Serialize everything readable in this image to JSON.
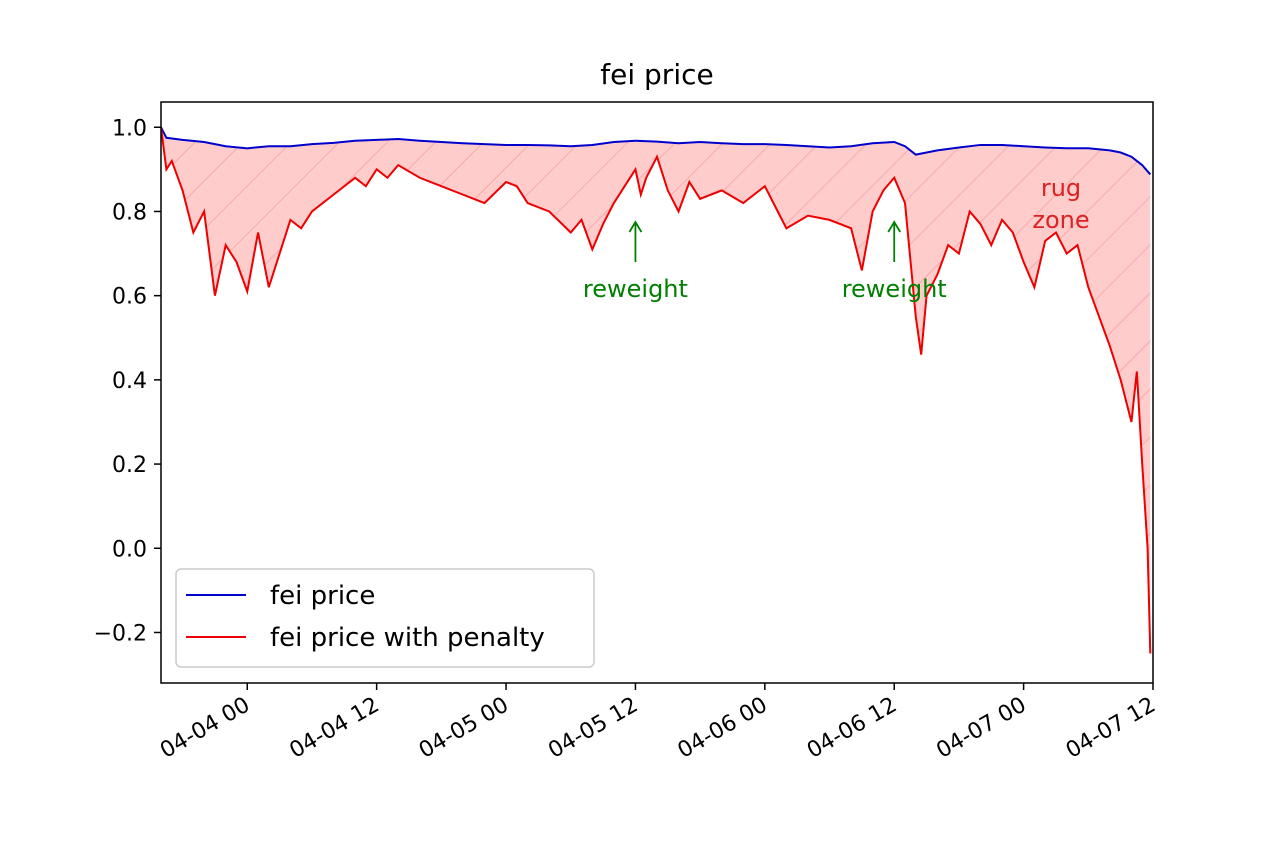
{
  "chart_data": {
    "type": "line",
    "title": "fei price",
    "xlabel": "",
    "ylabel": "",
    "x_range": [
      "2022-04-03 16:00",
      "2022-04-07 12:00"
    ],
    "ylim": [
      -0.32,
      1.06
    ],
    "grid": false,
    "legend_position": "lower-left",
    "x_ticks": [
      "04-04 00",
      "04-04 12",
      "04-05 00",
      "04-05 12",
      "04-06 00",
      "04-06 12",
      "04-07 00",
      "04-07 12"
    ],
    "y_ticks": [
      "1.0",
      "0.8",
      "0.6",
      "0.4",
      "0.2",
      "0.0",
      "−0.2"
    ],
    "series": [
      {
        "name": "fei price",
        "color": "#0000cc",
        "points": [
          [
            "04-03 16:00",
            1.0
          ],
          [
            "04-03 16:30",
            0.975
          ],
          [
            "04-03 18:00",
            0.97
          ],
          [
            "04-03 20:00",
            0.965
          ],
          [
            "04-03 22:00",
            0.955
          ],
          [
            "04-04 00:00",
            0.95
          ],
          [
            "04-04 02:00",
            0.955
          ],
          [
            "04-04 04:00",
            0.955
          ],
          [
            "04-04 06:00",
            0.96
          ],
          [
            "04-04 08:00",
            0.963
          ],
          [
            "04-04 10:00",
            0.968
          ],
          [
            "04-04 12:00",
            0.97
          ],
          [
            "04-04 14:00",
            0.972
          ],
          [
            "04-04 16:00",
            0.968
          ],
          [
            "04-04 18:00",
            0.965
          ],
          [
            "04-04 20:00",
            0.962
          ],
          [
            "04-04 22:00",
            0.96
          ],
          [
            "04-05 00:00",
            0.958
          ],
          [
            "04-05 02:00",
            0.958
          ],
          [
            "04-05 04:00",
            0.957
          ],
          [
            "04-05 06:00",
            0.955
          ],
          [
            "04-05 08:00",
            0.958
          ],
          [
            "04-05 10:00",
            0.965
          ],
          [
            "04-05 12:00",
            0.968
          ],
          [
            "04-05 14:00",
            0.966
          ],
          [
            "04-05 16:00",
            0.962
          ],
          [
            "04-05 18:00",
            0.965
          ],
          [
            "04-05 20:00",
            0.962
          ],
          [
            "04-05 22:00",
            0.96
          ],
          [
            "04-06 00:00",
            0.96
          ],
          [
            "04-06 02:00",
            0.958
          ],
          [
            "04-06 04:00",
            0.955
          ],
          [
            "04-06 06:00",
            0.952
          ],
          [
            "04-06 08:00",
            0.955
          ],
          [
            "04-06 10:00",
            0.962
          ],
          [
            "04-06 12:00",
            0.965
          ],
          [
            "04-06 13:00",
            0.955
          ],
          [
            "04-06 14:00",
            0.935
          ],
          [
            "04-06 16:00",
            0.945
          ],
          [
            "04-06 18:00",
            0.952
          ],
          [
            "04-06 20:00",
            0.958
          ],
          [
            "04-06 22:00",
            0.958
          ],
          [
            "04-07 00:00",
            0.955
          ],
          [
            "04-07 02:00",
            0.952
          ],
          [
            "04-07 04:00",
            0.95
          ],
          [
            "04-07 06:00",
            0.95
          ],
          [
            "04-07 08:00",
            0.945
          ],
          [
            "04-07 09:00",
            0.94
          ],
          [
            "04-07 10:00",
            0.93
          ],
          [
            "04-07 11:00",
            0.91
          ],
          [
            "04-07 11:45",
            0.888
          ]
        ]
      },
      {
        "name": "fei price with penalty",
        "color": "#ee0000",
        "points": [
          [
            "04-03 16:00",
            1.0
          ],
          [
            "04-03 16:30",
            0.9
          ],
          [
            "04-03 17:00",
            0.92
          ],
          [
            "04-03 18:00",
            0.85
          ],
          [
            "04-03 19:00",
            0.75
          ],
          [
            "04-03 20:00",
            0.8
          ],
          [
            "04-03 21:00",
            0.6
          ],
          [
            "04-03 22:00",
            0.72
          ],
          [
            "04-03 23:00",
            0.68
          ],
          [
            "04-04 00:00",
            0.61
          ],
          [
            "04-04 01:00",
            0.75
          ],
          [
            "04-04 02:00",
            0.62
          ],
          [
            "04-04 03:00",
            0.7
          ],
          [
            "04-04 04:00",
            0.78
          ],
          [
            "04-04 05:00",
            0.76
          ],
          [
            "04-04 06:00",
            0.8
          ],
          [
            "04-04 08:00",
            0.84
          ],
          [
            "04-04 10:00",
            0.88
          ],
          [
            "04-04 11:00",
            0.86
          ],
          [
            "04-04 12:00",
            0.9
          ],
          [
            "04-04 13:00",
            0.88
          ],
          [
            "04-04 14:00",
            0.91
          ],
          [
            "04-04 16:00",
            0.88
          ],
          [
            "04-04 18:00",
            0.86
          ],
          [
            "04-04 20:00",
            0.84
          ],
          [
            "04-04 22:00",
            0.82
          ],
          [
            "04-05 00:00",
            0.87
          ],
          [
            "04-05 01:00",
            0.86
          ],
          [
            "04-05 02:00",
            0.82
          ],
          [
            "04-05 04:00",
            0.8
          ],
          [
            "04-05 06:00",
            0.75
          ],
          [
            "04-05 07:00",
            0.78
          ],
          [
            "04-05 08:00",
            0.71
          ],
          [
            "04-05 09:00",
            0.77
          ],
          [
            "04-05 10:00",
            0.82
          ],
          [
            "04-05 11:00",
            0.86
          ],
          [
            "04-05 12:00",
            0.9
          ],
          [
            "04-05 12:30",
            0.84
          ],
          [
            "04-05 13:00",
            0.88
          ],
          [
            "04-05 14:00",
            0.93
          ],
          [
            "04-05 15:00",
            0.85
          ],
          [
            "04-05 16:00",
            0.8
          ],
          [
            "04-05 17:00",
            0.87
          ],
          [
            "04-05 18:00",
            0.83
          ],
          [
            "04-05 20:00",
            0.85
          ],
          [
            "04-05 22:00",
            0.82
          ],
          [
            "04-06 00:00",
            0.86
          ],
          [
            "04-06 01:00",
            0.81
          ],
          [
            "04-06 02:00",
            0.76
          ],
          [
            "04-06 04:00",
            0.79
          ],
          [
            "04-06 06:00",
            0.78
          ],
          [
            "04-06 08:00",
            0.76
          ],
          [
            "04-06 09:00",
            0.66
          ],
          [
            "04-06 10:00",
            0.8
          ],
          [
            "04-06 11:00",
            0.85
          ],
          [
            "04-06 12:00",
            0.88
          ],
          [
            "04-06 13:00",
            0.82
          ],
          [
            "04-06 14:00",
            0.55
          ],
          [
            "04-06 14:30",
            0.46
          ],
          [
            "04-06 15:00",
            0.6
          ],
          [
            "04-06 16:00",
            0.65
          ],
          [
            "04-06 17:00",
            0.72
          ],
          [
            "04-06 18:00",
            0.7
          ],
          [
            "04-06 19:00",
            0.8
          ],
          [
            "04-06 20:00",
            0.77
          ],
          [
            "04-06 21:00",
            0.72
          ],
          [
            "04-06 22:00",
            0.78
          ],
          [
            "04-06 23:00",
            0.75
          ],
          [
            "04-07 00:00",
            0.68
          ],
          [
            "04-07 01:00",
            0.62
          ],
          [
            "04-07 02:00",
            0.73
          ],
          [
            "04-07 03:00",
            0.75
          ],
          [
            "04-07 04:00",
            0.7
          ],
          [
            "04-07 05:00",
            0.72
          ],
          [
            "04-07 06:00",
            0.62
          ],
          [
            "04-07 07:00",
            0.55
          ],
          [
            "04-07 08:00",
            0.48
          ],
          [
            "04-07 09:00",
            0.4
          ],
          [
            "04-07 10:00",
            0.3
          ],
          [
            "04-07 10:30",
            0.42
          ],
          [
            "04-07 11:00",
            0.2
          ],
          [
            "04-07 11:30",
            0.0
          ],
          [
            "04-07 11:45",
            -0.25
          ]
        ]
      }
    ],
    "fill_between": {
      "upper": "fei price",
      "lower": "fei price with penalty",
      "color": "#ffcccc",
      "hatch": "diagonal"
    },
    "annotations": [
      {
        "text": "reweight",
        "x": "04-05 12:00",
        "color": "#008000"
      },
      {
        "text": "reweight",
        "x": "04-06 12:00",
        "color": "#008000"
      },
      {
        "text": "rug\nzone",
        "x": "04-07 09:00",
        "color": "#dd2222"
      }
    ]
  }
}
